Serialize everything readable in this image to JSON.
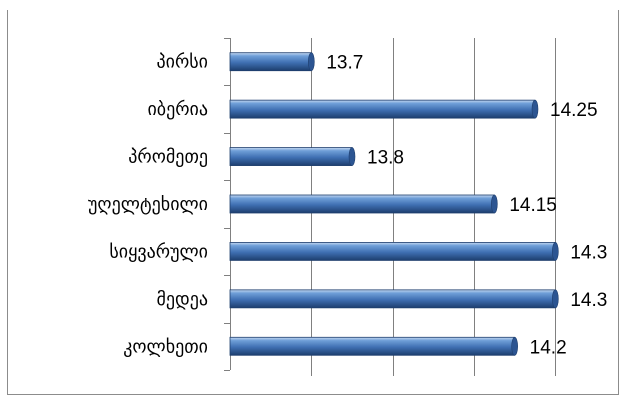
{
  "chart_data": {
    "type": "bar",
    "orientation": "horizontal",
    "title": "",
    "categories": [
      "პირსი",
      "იბერია",
      "პრომეთე",
      "უღელტეხილი",
      "სიყვარული",
      "მედეა",
      "კოლხეთი"
    ],
    "values": [
      13.7,
      14.25,
      13.8,
      14.15,
      14.3,
      14.3,
      14.2
    ],
    "value_labels": [
      "13.7",
      "14.25",
      "13.8",
      "14.15",
      "14.3",
      "14.3",
      "14.2"
    ],
    "xlim": [
      13.5,
      14.4
    ],
    "grid": true,
    "colors": {
      "bar": "#4f81bd",
      "bar_dark": "#1f3f6e",
      "grid": "#808080",
      "axis": "#808080"
    }
  }
}
